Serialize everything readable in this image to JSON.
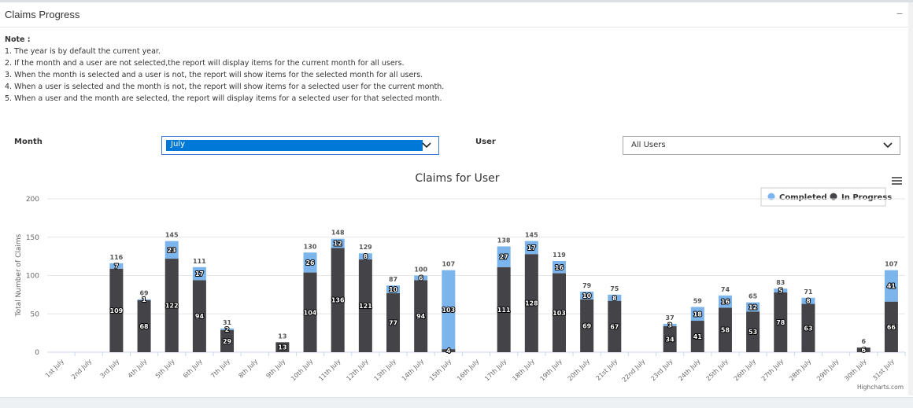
{
  "header": {
    "title": "Claims Progress",
    "collapse_label": "−"
  },
  "notes": {
    "title": "Note :",
    "lines": [
      "1. The year is by default the current year.",
      "2. If the month and a user are not selected,the report will display items for the current month for all users.",
      "3. When the month is selected and a user is not, the report will show items for the selected month for all users.",
      "4. When a user is selected and the month is not, the report will show items for a selected user for the current month.",
      "5. When a user and the month are selected, the report will display items for a selected user for that selected month."
    ]
  },
  "filters": {
    "month_label": "Month",
    "month_value": "July",
    "user_label": "User",
    "user_value": "All Users"
  },
  "chart_data": {
    "type": "bar",
    "stacked": true,
    "title": "Claims for User",
    "xlabel": "",
    "ylabel": "Total Number of Claims",
    "ylim": [
      0,
      200
    ],
    "yticks": [
      0,
      50,
      100,
      150,
      200
    ],
    "grid": true,
    "legend_position": "top-right",
    "credits": "Highcharts.com",
    "categories": [
      "1st July",
      "2nd July",
      "3rd July",
      "4th July",
      "5th July",
      "6th July",
      "7th July",
      "8th July",
      "9th July",
      "10th July",
      "11th July",
      "12th July",
      "13th July",
      "14th July",
      "15th July",
      "16th July",
      "17th July",
      "18th July",
      "19th July",
      "20th July",
      "21st July",
      "22nd July",
      "23rd July",
      "24th July",
      "25th July",
      "26th July",
      "27th July",
      "28th July",
      "29th July",
      "30th July",
      "31st July"
    ],
    "series": [
      {
        "name": "Completed",
        "color": "#7cb5ec",
        "values": [
          0,
          0,
          7,
          1,
          23,
          17,
          2,
          0,
          0,
          26,
          12,
          8,
          10,
          6,
          103,
          0,
          27,
          17,
          16,
          10,
          8,
          0,
          3,
          18,
          16,
          12,
          5,
          8,
          0,
          0,
          41
        ]
      },
      {
        "name": "In Progress",
        "color": "#434348",
        "values": [
          0,
          0,
          109,
          68,
          122,
          94,
          29,
          0,
          13,
          104,
          136,
          121,
          77,
          94,
          4,
          0,
          111,
          128,
          103,
          69,
          67,
          0,
          34,
          41,
          58,
          53,
          78,
          63,
          0,
          6,
          66
        ]
      }
    ],
    "totals": [
      null,
      null,
      116,
      69,
      145,
      111,
      31,
      null,
      13,
      130,
      148,
      129,
      87,
      100,
      107,
      null,
      138,
      145,
      119,
      79,
      75,
      null,
      37,
      59,
      74,
      65,
      83,
      71,
      null,
      6,
      107
    ]
  },
  "colors": {
    "completed": "#7cb5ec",
    "in_progress": "#434348",
    "select_highlight": "#0078d7"
  },
  "icons": {
    "menu": "hamburger-menu-icon",
    "dropdown": "chevron-down-icon"
  }
}
